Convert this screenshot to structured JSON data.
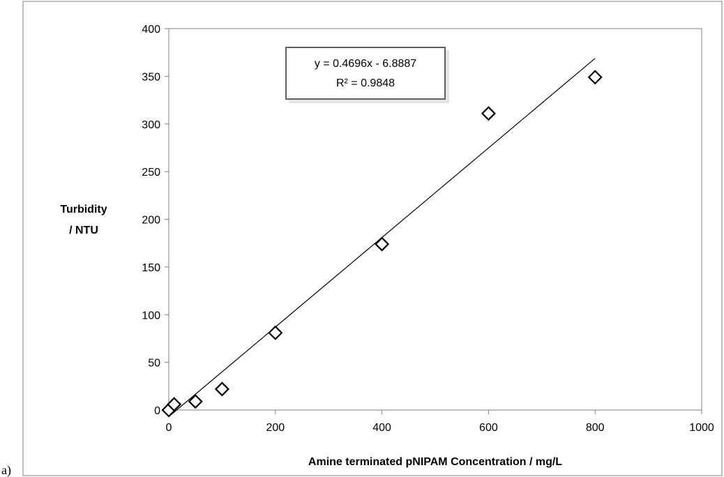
{
  "panel_label": "a)",
  "chart_data": {
    "type": "scatter",
    "title": "",
    "xlabel": "Amine terminated pNIPAM Concentration / mg/L",
    "ylabel_lines": [
      "Turbidity",
      "/ NTU"
    ],
    "xlim": [
      0,
      1000
    ],
    "ylim": [
      0,
      400
    ],
    "x_ticks": [
      0,
      200,
      400,
      600,
      800,
      1000
    ],
    "y_ticks": [
      0,
      50,
      100,
      150,
      200,
      250,
      300,
      350,
      400
    ],
    "grid": false,
    "marker": "diamond-open",
    "points": [
      {
        "x": 0,
        "y": 0
      },
      {
        "x": 10,
        "y": 6
      },
      {
        "x": 50,
        "y": 9
      },
      {
        "x": 100,
        "y": 22
      },
      {
        "x": 200,
        "y": 81
      },
      {
        "x": 400,
        "y": 174
      },
      {
        "x": 600,
        "y": 311
      },
      {
        "x": 800,
        "y": 349
      }
    ],
    "trendline": {
      "type": "linear",
      "slope": 0.4696,
      "intercept": -6.8887,
      "x_range": [
        0,
        800
      ],
      "equation": "y = 0.4696x - 6.8887",
      "r_squared": "R² = 0.9848"
    }
  }
}
